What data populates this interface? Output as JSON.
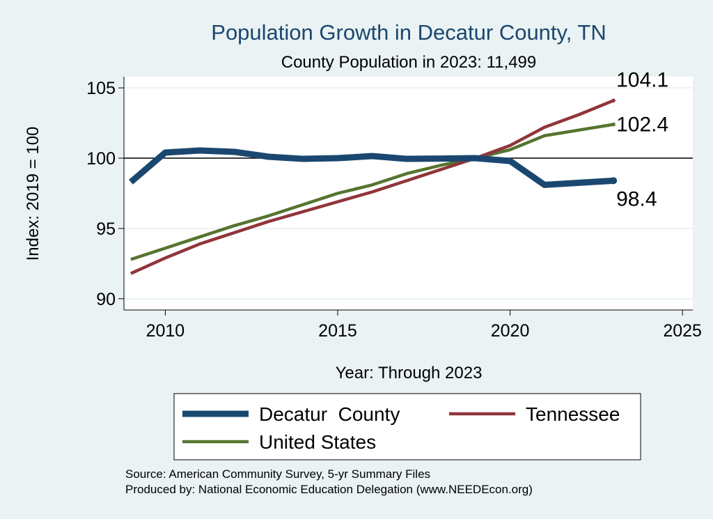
{
  "chart_data": {
    "type": "line",
    "title": "Population Growth in Decatur County, TN",
    "subtitle": "County Population in 2023: 11,499",
    "xlabel": "Year: Through 2023",
    "ylabel": "Index: 2019 = 100",
    "xlim": [
      2008.8,
      2025.3
    ],
    "ylim": [
      89.2,
      105.8
    ],
    "xticks": [
      2010,
      2015,
      2020,
      2025
    ],
    "yticks": [
      90,
      95,
      100,
      105
    ],
    "reference_line": 100,
    "x": [
      2009,
      2010,
      2011,
      2012,
      2013,
      2014,
      2015,
      2016,
      2017,
      2018,
      2019,
      2020,
      2021,
      2022,
      2023
    ],
    "series": [
      {
        "name": "Decatur  County",
        "color": "#1a476f",
        "width": 9,
        "values": [
          98.3,
          100.4,
          100.55,
          100.45,
          100.1,
          99.95,
          100.0,
          100.15,
          99.95,
          99.97,
          100.0,
          99.8,
          98.1,
          98.25,
          98.4
        ],
        "end_label": "98.4"
      },
      {
        "name": "Tennessee",
        "color": "#90353b",
        "width": 4.5,
        "values": [
          91.8,
          92.9,
          93.9,
          94.7,
          95.5,
          96.2,
          96.9,
          97.6,
          98.4,
          99.2,
          100.0,
          100.9,
          102.2,
          103.1,
          104.1
        ],
        "end_label": "104.1"
      },
      {
        "name": "United States",
        "color": "#55752f",
        "width": 4.5,
        "values": [
          92.8,
          93.6,
          94.4,
          95.2,
          95.9,
          96.7,
          97.5,
          98.1,
          98.9,
          99.5,
          100.0,
          100.6,
          101.6,
          102.0,
          102.4
        ],
        "end_label": "102.4"
      }
    ],
    "legend": "bottom",
    "notes": [
      "Source: American Community Survey, 5-yr Summary Files",
      "Produced by: National Economic Education Delegation (www.NEEDEcon.org)"
    ]
  }
}
